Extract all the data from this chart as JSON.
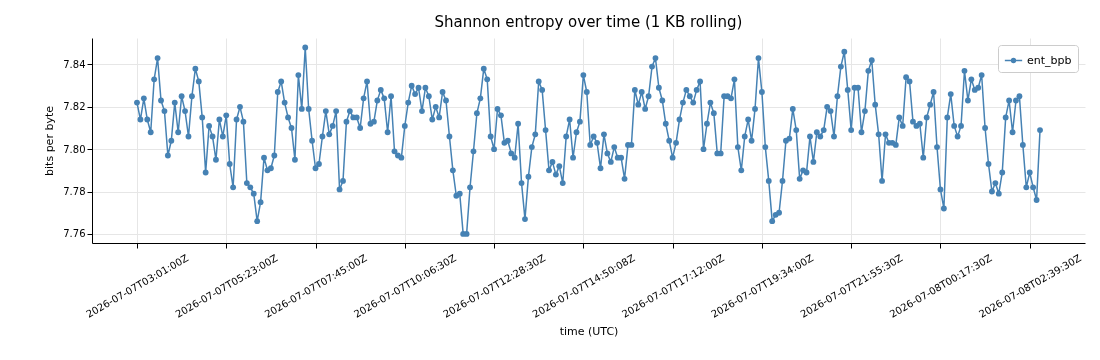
{
  "chart_data": {
    "type": "line",
    "title": "Shannon entropy over time (1 KB rolling)",
    "xlabel": "time (UTC)",
    "ylabel": "bits per byte",
    "categories": [
      "2026-07-07T03:01:00Z",
      null,
      null,
      null,
      null,
      null,
      null,
      null,
      null,
      null,
      null,
      null,
      null,
      null,
      null,
      null,
      null,
      null,
      null,
      null,
      null,
      null,
      null,
      null,
      null,
      null,
      "2026-07-07T05:23:00Z",
      null,
      null,
      null,
      null,
      null,
      null,
      null,
      null,
      null,
      null,
      null,
      null,
      null,
      null,
      null,
      null,
      null,
      null,
      null,
      null,
      null,
      null,
      null,
      null,
      null,
      "2026-07-07T07:45:00Z",
      null,
      null,
      null,
      null,
      null,
      null,
      null,
      null,
      null,
      null,
      null,
      null,
      null,
      null,
      null,
      null,
      null,
      null,
      null,
      null,
      null,
      null,
      null,
      null,
      null,
      "2026-07-07T10:06:30Z",
      null,
      null,
      null,
      null,
      null,
      null,
      null,
      null,
      null,
      null,
      null,
      null,
      null,
      null,
      null,
      null,
      null,
      null,
      null,
      null,
      null,
      null,
      null,
      null,
      null,
      "2026-07-07T12:28:30Z",
      null,
      null,
      null,
      null,
      null,
      null,
      null,
      null,
      null,
      null,
      null,
      null,
      null,
      null,
      null,
      null,
      null,
      null,
      null,
      null,
      null,
      null,
      null,
      null,
      null,
      "2026-07-07T14:50:08Z",
      null,
      null,
      null,
      null,
      null,
      null,
      null,
      null,
      null,
      null,
      null,
      null,
      null,
      null,
      null,
      null,
      null,
      null,
      null,
      null,
      null,
      null,
      null,
      null,
      null,
      "2026-07-07T17:12:00Z",
      null,
      null,
      null,
      null,
      null,
      null,
      null,
      null,
      null,
      null,
      null,
      null,
      null,
      null,
      null,
      null,
      null,
      null,
      null,
      null,
      null,
      null,
      null,
      null,
      null,
      "2026-07-07T19:34:00Z",
      null,
      null,
      null,
      null,
      null,
      null,
      null,
      null,
      null,
      null,
      null,
      null,
      null,
      null,
      null,
      null,
      null,
      null,
      null,
      null,
      null,
      null,
      null,
      null,
      null,
      "2026-07-07T21:55:30Z",
      null,
      null,
      null,
      null,
      null,
      null,
      null,
      null,
      null,
      null,
      null,
      null,
      null,
      null,
      null,
      null,
      null,
      null,
      null,
      null,
      null,
      null,
      null,
      null,
      null,
      "2026-07-08T00:17:30Z",
      null,
      null,
      null,
      null,
      null,
      null,
      null,
      null,
      null,
      null,
      null,
      null,
      null,
      null,
      null,
      null,
      null,
      null,
      null,
      null,
      null,
      null,
      null,
      null,
      null,
      "2026-07-08T02:39:30Z",
      null,
      null,
      null
    ],
    "series": [
      {
        "name": "ent_bpb",
        "color": "#4682b4",
        "values": [
          7.822,
          7.814,
          7.824,
          7.814,
          7.808,
          7.833,
          7.843,
          7.823,
          7.818,
          7.797,
          7.804,
          7.822,
          7.808,
          7.825,
          7.818,
          7.806,
          7.825,
          7.838,
          7.832,
          7.815,
          7.789,
          7.811,
          7.806,
          7.795,
          7.814,
          7.806,
          7.816,
          7.793,
          7.782,
          7.814,
          7.82,
          7.813,
          7.784,
          7.782,
          7.779,
          7.766,
          7.775,
          7.796,
          7.79,
          7.791,
          7.797,
          7.827,
          7.832,
          7.822,
          7.815,
          7.81,
          7.795,
          7.835,
          7.819,
          7.848,
          7.819,
          7.804,
          7.791,
          7.793,
          7.806,
          7.818,
          7.807,
          7.811,
          7.818,
          7.781,
          7.785,
          7.813,
          7.818,
          7.815,
          7.815,
          7.81,
          7.824,
          7.832,
          7.812,
          7.813,
          7.823,
          7.828,
          7.824,
          7.808,
          7.825,
          7.799,
          7.797,
          7.796,
          7.811,
          7.822,
          7.83,
          7.826,
          7.829,
          7.818,
          7.829,
          7.825,
          7.814,
          7.82,
          7.815,
          7.827,
          7.823,
          7.806,
          7.79,
          7.778,
          7.779,
          7.76,
          7.76,
          7.782,
          7.799,
          7.817,
          7.824,
          7.838,
          7.833,
          7.806,
          7.8,
          7.819,
          7.816,
          7.803,
          7.804,
          7.798,
          7.796,
          7.812,
          7.784,
          7.767,
          7.787,
          7.801,
          7.807,
          7.832,
          7.828,
          7.809,
          7.79,
          7.794,
          7.788,
          7.792,
          7.784,
          7.806,
          7.814,
          7.796,
          7.808,
          7.813,
          7.835,
          7.827,
          7.802,
          7.806,
          7.803,
          7.791,
          7.807,
          7.798,
          7.794,
          7.801,
          7.796,
          7.796,
          7.786,
          7.802,
          7.802,
          7.828,
          7.821,
          7.827,
          7.819,
          7.825,
          7.839,
          7.843,
          7.829,
          7.823,
          7.812,
          7.804,
          7.796,
          7.803,
          7.814,
          7.822,
          7.828,
          7.825,
          7.822,
          7.828,
          7.832,
          7.8,
          7.812,
          7.822,
          7.817,
          7.798,
          7.798,
          7.825,
          7.825,
          7.824,
          7.833,
          7.801,
          7.79,
          7.806,
          7.814,
          7.804,
          7.819,
          7.843,
          7.827,
          7.801,
          7.785,
          7.766,
          7.769,
          7.77,
          7.785,
          7.804,
          7.805,
          7.819,
          7.809,
          7.786,
          7.79,
          7.789,
          7.806,
          7.794,
          7.808,
          7.806,
          7.809,
          7.82,
          7.818,
          7.806,
          7.825,
          7.839,
          7.846,
          7.828,
          7.809,
          7.829,
          7.829,
          7.808,
          7.818,
          7.837,
          7.842,
          7.821,
          7.807,
          7.785,
          7.807,
          7.803,
          7.803,
          7.802,
          7.815,
          7.811,
          7.834,
          7.832,
          7.813,
          7.811,
          7.812,
          7.796,
          7.815,
          7.821,
          7.827,
          7.801,
          7.781,
          7.772,
          7.815,
          7.826,
          7.811,
          7.806,
          7.811,
          7.837,
          7.823,
          7.833,
          7.828,
          7.829,
          7.835,
          7.81,
          7.793,
          7.78,
          7.784,
          7.779,
          7.789,
          7.815,
          7.823,
          7.808,
          7.823,
          7.825,
          7.802,
          7.782,
          7.789,
          7.782,
          7.776,
          7.809
        ]
      }
    ],
    "ylim": [
      7.7557,
      7.8525
    ],
    "yticks": [
      {
        "value": 7.76,
        "label": "7.76"
      },
      {
        "value": 7.78,
        "label": "7.78"
      },
      {
        "value": 7.8,
        "label": "7.80"
      },
      {
        "value": 7.82,
        "label": "7.82"
      },
      {
        "value": 7.84,
        "label": "7.84"
      }
    ],
    "grid": true,
    "legend": "top right",
    "marker": "circle",
    "line_style": "solid"
  }
}
